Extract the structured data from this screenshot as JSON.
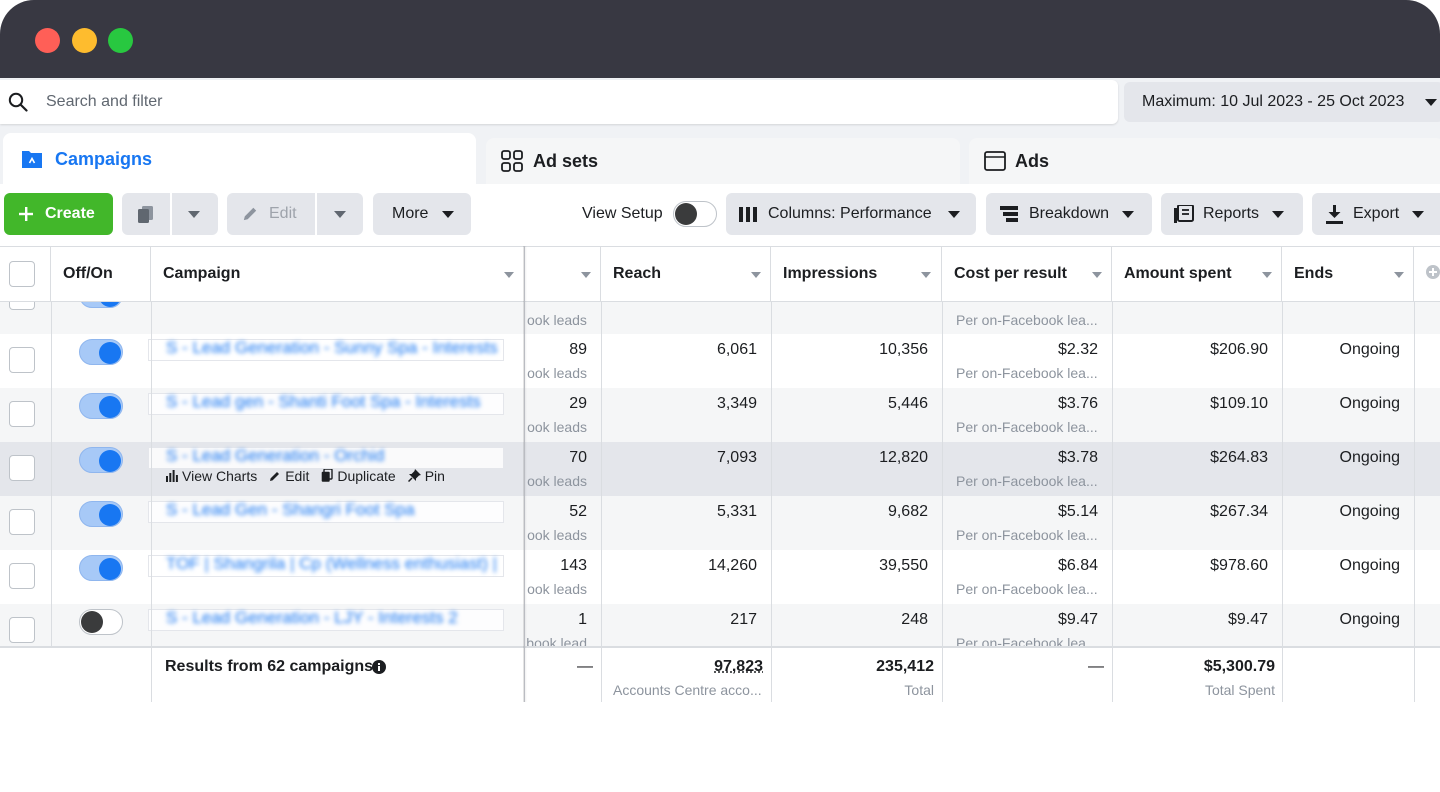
{
  "search": {
    "placeholder": "Search and filter"
  },
  "date_range": "Maximum: 10 Jul 2023 - 25 Oct 2023",
  "tabs": [
    {
      "label": "Campaigns",
      "icon": "folder-icon",
      "active": true
    },
    {
      "label": "Ad sets",
      "icon": "grid-icon",
      "active": false
    },
    {
      "label": "Ads",
      "icon": "ad-window-icon",
      "active": false
    }
  ],
  "toolbar": {
    "create": "Create",
    "edit": "Edit",
    "more": "More",
    "view_setup": "View Setup",
    "columns": "Columns: Performance",
    "breakdown": "Breakdown",
    "reports": "Reports",
    "export": "Export"
  },
  "columns": {
    "offon": "Off/On",
    "campaign": "Campaign",
    "reach": "Reach",
    "impressions": "Impressions",
    "cost_per_result": "Cost per result",
    "amount_spent": "Amount spent",
    "ends": "Ends"
  },
  "top_partial_row": {
    "results_sub": "ook leads",
    "cpr_sub": "Per on-Facebook lea..."
  },
  "rows": [
    {
      "name": "S - Lead Generation - Sunny Spa - Interests 7",
      "on": true,
      "results": "89",
      "results_sub": "ook leads",
      "reach": "6,061",
      "impressions": "10,356",
      "cpr": "$2.32",
      "cpr_sub": "Per on-Facebook lea...",
      "spent": "$206.90",
      "ends": "Ongoing"
    },
    {
      "name": "S - Lead gen - Shanti Foot Spa - Interests",
      "on": true,
      "results": "29",
      "results_sub": "ook leads",
      "reach": "3,349",
      "impressions": "5,446",
      "cpr": "$3.76",
      "cpr_sub": "Per on-Facebook lea...",
      "spent": "$109.10",
      "ends": "Ongoing"
    },
    {
      "name": "S - Lead Generation - Orchid",
      "on": true,
      "results": "70",
      "results_sub": "ook leads",
      "reach": "7,093",
      "impressions": "12,820",
      "cpr": "$3.78",
      "cpr_sub": "Per on-Facebook lea...",
      "spent": "$264.83",
      "ends": "Ongoing"
    },
    {
      "name": "S - Lead Gen - Shangri Foot Spa",
      "on": true,
      "results": "52",
      "results_sub": "ook leads",
      "reach": "5,331",
      "impressions": "9,682",
      "cpr": "$5.14",
      "cpr_sub": "Per on-Facebook lea...",
      "spent": "$267.34",
      "ends": "Ongoing"
    },
    {
      "name": "TOF | Shangrila | Cp (Wellness enthusiast) | e",
      "on": true,
      "results": "143",
      "results_sub": "ook leads",
      "reach": "14,260",
      "impressions": "39,550",
      "cpr": "$6.84",
      "cpr_sub": "Per on-Facebook lea...",
      "spent": "$978.60",
      "ends": "Ongoing"
    },
    {
      "name": "S - Lead Generation - LJY - Interests 2",
      "on": false,
      "results": "1",
      "results_sub": "book lead",
      "reach": "217",
      "impressions": "248",
      "cpr": "$9.47",
      "cpr_sub": "Per on-Facebook lea...",
      "spent": "$9.47",
      "ends": "Ongoing"
    }
  ],
  "row_actions": {
    "view_charts": "View Charts",
    "edit": "Edit",
    "duplicate": "Duplicate",
    "pin": "Pin"
  },
  "totals": {
    "label": "Results from 62 campaigns",
    "results": "—",
    "reach": "97,823",
    "reach_sub": "Accounts Centre acco...",
    "impressions": "235,412",
    "impressions_sub": "Total",
    "cpr": "—",
    "spent": "$5,300.79",
    "spent_sub": "Total Spent"
  },
  "colors": {
    "accent": "#1877f2",
    "create_green": "#42b72a",
    "titlebar": "#383842"
  }
}
